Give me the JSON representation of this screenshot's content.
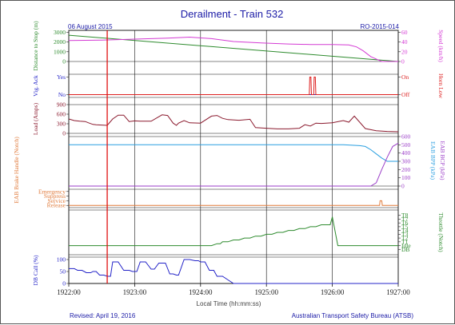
{
  "header": {
    "title": "Derailment - Train 532",
    "date": "06 August 2015",
    "report_id": "RO-2015-014"
  },
  "footer": {
    "revised": "Revised: April 19, 2016",
    "agency": "Australian Transport Safety Bureau (ATSB)",
    "xlabel": "Local Time (hh:mm:ss)"
  },
  "colors": {
    "border": "#333333",
    "title": "#1a1aa6",
    "green": "#2e8b2e",
    "magenta": "#d43bd4",
    "blue": "#2424c8",
    "red": "#dd2020",
    "maroon": "#8b1a2e",
    "lightblue": "#2a9fe0",
    "purple": "#9b3ec8",
    "orange": "#e07a3a",
    "grid": "#000000",
    "marker": "#e01010"
  },
  "chart_data": {
    "type": "line",
    "x_unit": "time",
    "x_start": "1922:00",
    "x_end": "1927:00",
    "x_ticks": [
      "1922:00",
      "1923:00",
      "1924:00",
      "1925:00",
      "1926:00",
      "1927:00"
    ],
    "marker_time_s": 35,
    "panels": [
      {
        "id": "distance_speed",
        "left_label": "Distance to Stop (m)",
        "left_ticks": [
          "3000",
          "2000",
          "1000",
          "0"
        ],
        "left_range": [
          0,
          3200
        ],
        "right_label": "Speed (km/h)",
        "right_ticks": [
          "60",
          "40",
          "20",
          "0"
        ],
        "right_range": [
          0,
          64
        ],
        "series": [
          {
            "axis": "left",
            "color": "green",
            "t": [
              0,
              300
            ],
            "v": [
              2700,
              0
            ]
          },
          {
            "axis": "right",
            "color": "magenta",
            "t": [
              0,
              30,
              60,
              90,
              110,
              130,
              150,
              175,
              200,
              220,
              240,
              255,
              262,
              268,
              275,
              285,
              300
            ],
            "v": [
              43,
              44,
              46,
              48,
              50,
              47,
              41,
              38,
              36,
              35,
              35,
              34,
              30,
              22,
              10,
              0,
              0
            ]
          }
        ]
      },
      {
        "id": "vigilance_horn",
        "left_label": "Vig. Ack",
        "left_ticks": [
          "Yes",
          "No"
        ],
        "right_label": "Horn Low",
        "right_ticks": [
          "On",
          "Off"
        ],
        "series": [
          {
            "axis": "left",
            "color": "blue",
            "t": [
              0,
              300
            ],
            "v": [
              0,
              0
            ]
          },
          {
            "axis": "right",
            "color": "red",
            "t": [
              0,
              219,
              219.5,
              220.5,
              221,
              223,
              223.5,
              224.5,
              225,
              300
            ],
            "v": [
              0,
              0,
              1,
              1,
              0,
              0,
              1,
              1,
              0,
              0
            ]
          }
        ]
      },
      {
        "id": "load",
        "left_label": "Load (Amps)",
        "left_ticks": [
          "900",
          "600",
          "300",
          "0"
        ],
        "left_range": [
          0,
          900
        ],
        "series": [
          {
            "axis": "left",
            "color": "maroon",
            "t": [
              0,
              5,
              10,
              15,
              18,
              22,
              25,
              30,
              35,
              40,
              45,
              50,
              55,
              60,
              65,
              75,
              85,
              90,
              95,
              98,
              100,
              105,
              110,
              120,
              130,
              135,
              140,
              145,
              155,
              165,
              170,
              180,
              190,
              200,
              210,
              215,
              220,
              225,
              230,
              240,
              250,
              255,
              260,
              270,
              280,
              290,
              300
            ],
            "v": [
              450,
              400,
              380,
              370,
              330,
              280,
              270,
              260,
              250,
              450,
              570,
              570,
              370,
              390,
              380,
              380,
              580,
              560,
              320,
              250,
              320,
              400,
              330,
              320,
              540,
              560,
              470,
              430,
              410,
              440,
              180,
              160,
              140,
              140,
              160,
              270,
              230,
              320,
              310,
              330,
              400,
              350,
              540,
              150,
              80,
              60,
              50
            ]
          }
        ]
      },
      {
        "id": "brakes",
        "right_label": "EAB BPP (kPa)",
        "right_label2": "EAB BCP (kPa)",
        "right_ticks": [
          "600",
          "500",
          "400",
          "300",
          "200",
          "100",
          "0"
        ],
        "right_range": [
          0,
          600
        ],
        "series": [
          {
            "axis": "right",
            "color": "lightblue",
            "t": [
              0,
              250,
              265,
              270,
              275,
              280,
              285,
              290,
              300
            ],
            "v": [
              500,
              500,
              490,
              480,
              440,
              390,
              340,
              300,
              300
            ]
          },
          {
            "axis": "right",
            "color": "purple",
            "t": [
              0,
              275,
              280,
              285,
              290,
              295,
              300
            ],
            "v": [
              0,
              0,
              40,
              200,
              350,
              480,
              520
            ]
          }
        ]
      },
      {
        "id": "eab_handle",
        "left_label": "EAB Brake Handle (Notch)",
        "left_ticks": [
          "Emergency",
          "Suppress",
          "Service",
          "Release"
        ],
        "series": [
          {
            "axis": "left",
            "color": "orange",
            "t": [
              0,
              283,
              283.5,
              285,
              285.5,
              300
            ],
            "v": [
              0,
              0,
              1,
              1,
              0,
              0
            ]
          }
        ]
      },
      {
        "id": "throttle",
        "right_label": "Throttle (Notch)",
        "right_ticks": [
          "T8",
          "T7",
          "T6",
          "T5",
          "T4",
          "T3",
          "T2",
          "T1",
          "Idle",
          "DB"
        ],
        "series": [
          {
            "axis": "right",
            "color": "green",
            "t": [
              0,
              130,
              135,
              138,
              140,
              145,
              150,
              155,
              160,
              165,
              170,
              175,
              180,
              185,
              190,
              195,
              200,
              205,
              210,
              215,
              220,
              225,
              230,
              235,
              238,
              240,
              245,
              250,
              255,
              258,
              260,
              300
            ],
            "v": [
              1,
              1,
              1.5,
              1.5,
              2,
              2,
              2.5,
              2.5,
              3,
              3,
              3.5,
              3.5,
              4,
              4,
              4.5,
              4.5,
              5,
              5,
              5.5,
              5.5,
              6,
              6,
              6.5,
              6.5,
              6.5,
              8.6,
              1,
              1,
              1,
              1,
              1,
              1
            ]
          }
        ]
      },
      {
        "id": "db_call",
        "left_label": "DB Call (%)",
        "left_ticks": [
          "100",
          "50",
          "0"
        ],
        "left_range": [
          0,
          110
        ],
        "series": [
          {
            "axis": "left",
            "color": "blue",
            "t": [
              0,
              5,
              8,
              12,
              16,
              20,
              22,
              25,
              28,
              32,
              35,
              38,
              40,
              45,
              50,
              55,
              58,
              62,
              65,
              70,
              75,
              78,
              82,
              88,
              92,
              95,
              98,
              100,
              105,
              110,
              115,
              118,
              120,
              124,
              128,
              132,
              135,
              140,
              145,
              150,
              155,
              160,
              300
            ],
            "v": [
              62,
              62,
              55,
              55,
              45,
              45,
              50,
              50,
              35,
              35,
              30,
              30,
              90,
              90,
              55,
              55,
              50,
              50,
              90,
              90,
              60,
              60,
              85,
              85,
              40,
              40,
              35,
              35,
              100,
              100,
              95,
              95,
              90,
              90,
              55,
              55,
              30,
              30,
              15,
              0,
              0,
              0,
              0
            ]
          }
        ]
      }
    ]
  }
}
